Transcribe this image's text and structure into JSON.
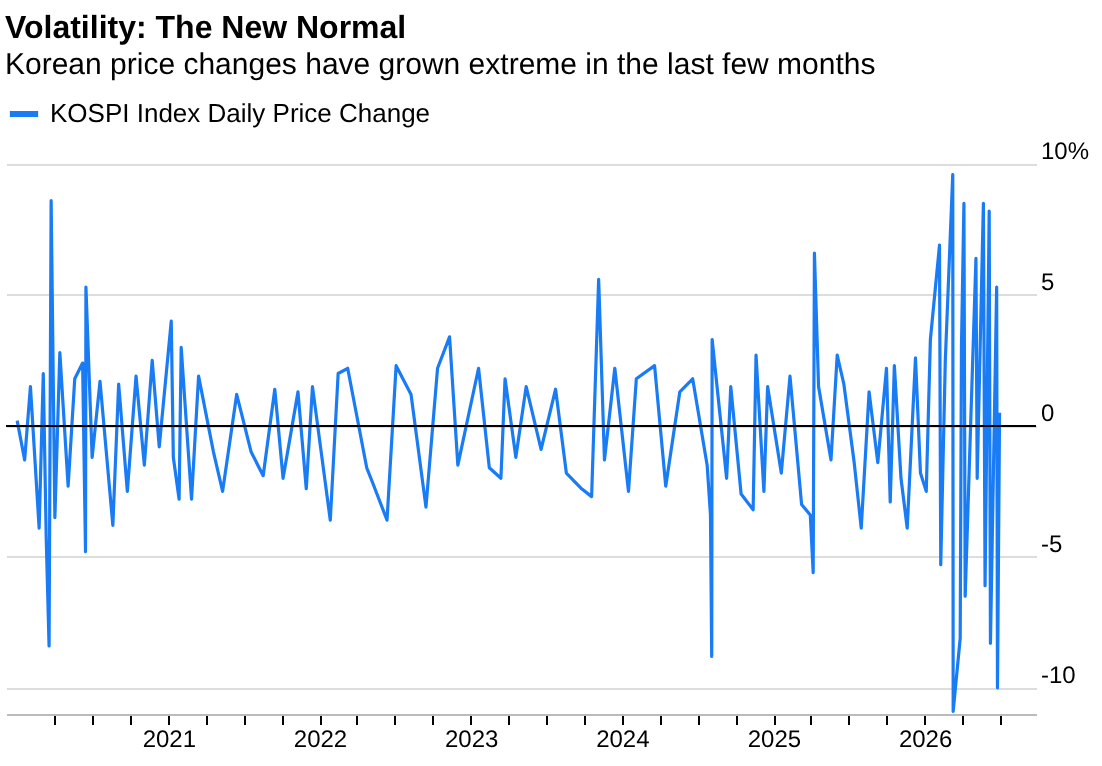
{
  "chart_data": {
    "type": "line",
    "title": "Volatility: The New Normal",
    "subtitle": "Korean price changes have grown extreme in the last few months",
    "legend": "top left",
    "grid": "y",
    "line_style": "solid",
    "marker": "none",
    "xlim": [
      "2019-12-06",
      "2026-09-27"
    ],
    "xticks": [
      {
        "value": "2020-04-01",
        "label": null
      },
      {
        "value": "2020-07-01",
        "label": null
      },
      {
        "value": "2020-10-01",
        "label": null
      },
      {
        "value": "2021-01-01",
        "label": "2021"
      },
      {
        "value": "2021-04-01",
        "label": null
      },
      {
        "value": "2021-07-01",
        "label": null
      },
      {
        "value": "2021-10-01",
        "label": null
      },
      {
        "value": "2022-01-01",
        "label": "2022"
      },
      {
        "value": "2022-04-01",
        "label": null
      },
      {
        "value": "2022-07-01",
        "label": null
      },
      {
        "value": "2022-10-01",
        "label": null
      },
      {
        "value": "2023-01-01",
        "label": "2023"
      },
      {
        "value": "2023-04-01",
        "label": null
      },
      {
        "value": "2023-07-01",
        "label": null
      },
      {
        "value": "2023-10-01",
        "label": null
      },
      {
        "value": "2024-01-01",
        "label": "2024"
      },
      {
        "value": "2024-04-01",
        "label": null
      },
      {
        "value": "2024-07-01",
        "label": null
      },
      {
        "value": "2024-10-01",
        "label": null
      },
      {
        "value": "2025-01-01",
        "label": "2025"
      },
      {
        "value": "2025-04-01",
        "label": null
      },
      {
        "value": "2025-07-01",
        "label": null
      },
      {
        "value": "2025-10-01",
        "label": null
      },
      {
        "value": "2026-01-01",
        "label": "2026"
      },
      {
        "value": "2026-04-01",
        "label": null
      },
      {
        "value": "2026-07-01",
        "label": null
      }
    ],
    "ylim": [
      -11,
      10
    ],
    "yticks": [
      {
        "value": 10,
        "label": "10%"
      },
      5,
      0,
      -5,
      -10
    ],
    "ref_lines": [
      {
        "axis": "y",
        "value": 0,
        "color": "#000000"
      }
    ],
    "x": [
      "2020-01-02",
      "2020-01-20",
      "2020-02-03",
      "2020-02-24",
      "2020-03-05",
      "2020-03-12",
      "2020-03-19",
      "2020-03-24",
      "2020-04-02",
      "2020-04-14",
      "2020-05-04",
      "2020-05-20",
      "2020-06-08",
      "2020-06-15",
      "2020-06-16",
      "2020-07-01",
      "2020-07-20",
      "2020-08-20",
      "2020-09-03",
      "2020-09-24",
      "2020-10-15",
      "2020-11-04",
      "2020-11-23",
      "2020-12-10",
      "2021-01-08",
      "2021-01-13",
      "2021-01-27",
      "2021-02-01",
      "2021-02-26",
      "2021-03-15",
      "2021-04-20",
      "2021-05-12",
      "2021-06-15",
      "2021-07-20",
      "2021-08-18",
      "2021-09-15",
      "2021-10-05",
      "2021-11-10",
      "2021-11-30",
      "2021-12-15",
      "2022-01-27",
      "2022-02-15",
      "2022-03-10",
      "2022-04-25",
      "2022-05-10",
      "2022-06-13",
      "2022-07-05",
      "2022-08-10",
      "2022-09-15",
      "2022-10-13",
      "2022-11-11",
      "2022-12-01",
      "2023-01-20",
      "2023-02-15",
      "2023-03-15",
      "2023-03-25",
      "2023-04-20",
      "2023-05-15",
      "2023-06-20",
      "2023-07-25",
      "2023-08-20",
      "2023-09-26",
      "2023-10-20",
      "2023-11-06",
      "2023-11-20",
      "2023-12-15",
      "2024-01-17",
      "2024-02-05",
      "2024-03-20",
      "2024-04-16",
      "2024-05-20",
      "2024-06-20",
      "2024-07-25",
      "2024-08-02",
      "2024-08-05",
      "2024-08-06",
      "2024-09-10",
      "2024-09-20",
      "2024-10-15",
      "2024-11-13",
      "2024-11-20",
      "2024-12-09",
      "2024-12-18",
      "2025-01-20",
      "2025-02-10",
      "2025-03-10",
      "2025-03-31",
      "2025-04-07",
      "2025-04-10",
      "2025-04-20",
      "2025-05-20",
      "2025-06-04",
      "2025-06-20",
      "2025-07-15",
      "2025-08-01",
      "2025-08-20",
      "2025-09-10",
      "2025-10-01",
      "2025-10-10",
      "2025-10-20",
      "2025-11-05",
      "2025-11-20",
      "2025-12-10",
      "2025-12-22",
      "2026-01-05",
      "2026-01-15",
      "2026-02-06",
      "2026-02-09",
      "2026-02-20",
      "2026-03-10",
      "2026-03-11",
      "2026-03-28",
      "2026-03-31",
      "2026-04-06",
      "2026-04-09",
      "2026-05-05",
      "2026-05-08",
      "2026-05-23",
      "2026-05-27",
      "2026-06-06",
      "2026-06-09",
      "2026-06-24",
      "2026-06-26",
      "2026-07-01"
    ],
    "series": [
      {
        "name": "KOSPI Index Daily Price Change",
        "color": "#1a7cf5",
        "values": [
          0.2,
          -1.3,
          1.5,
          -3.9,
          2.0,
          -4.2,
          -8.4,
          8.6,
          -3.5,
          2.8,
          -2.3,
          1.8,
          2.4,
          -4.8,
          5.3,
          -1.2,
          1.7,
          -3.8,
          1.6,
          -2.5,
          1.9,
          -1.5,
          2.5,
          -0.8,
          4.0,
          -1.2,
          -2.8,
          3.0,
          -2.8,
          1.9,
          -1.0,
          -2.5,
          1.2,
          -1.0,
          -1.9,
          1.4,
          -2.0,
          1.3,
          -2.4,
          1.5,
          -3.6,
          2.0,
          2.2,
          -1.6,
          -2.2,
          -3.6,
          2.3,
          1.2,
          -3.1,
          2.2,
          3.4,
          -1.5,
          2.2,
          -1.6,
          -2.0,
          1.8,
          -1.2,
          1.5,
          -0.9,
          1.4,
          -1.8,
          -2.4,
          -2.7,
          5.6,
          -1.3,
          2.2,
          -2.5,
          1.8,
          2.3,
          -2.3,
          1.3,
          1.8,
          -1.5,
          -3.4,
          -8.8,
          3.3,
          -2.0,
          1.5,
          -2.6,
          -3.2,
          2.7,
          -2.5,
          1.5,
          -1.8,
          1.9,
          -3.0,
          -3.4,
          -5.6,
          6.6,
          1.5,
          -1.3,
          2.7,
          1.6,
          -1.4,
          -3.9,
          1.3,
          -1.4,
          2.2,
          -2.9,
          2.3,
          -2.0,
          -3.9,
          2.6,
          -1.8,
          -2.5,
          3.3,
          6.9,
          -5.3,
          2.5,
          9.6,
          -10.9,
          -8.1,
          3.0,
          8.5,
          -6.5,
          6.4,
          -2.0,
          8.5,
          -6.1,
          8.2,
          -8.3,
          5.3,
          -10.0,
          0.5
        ]
      }
    ]
  }
}
